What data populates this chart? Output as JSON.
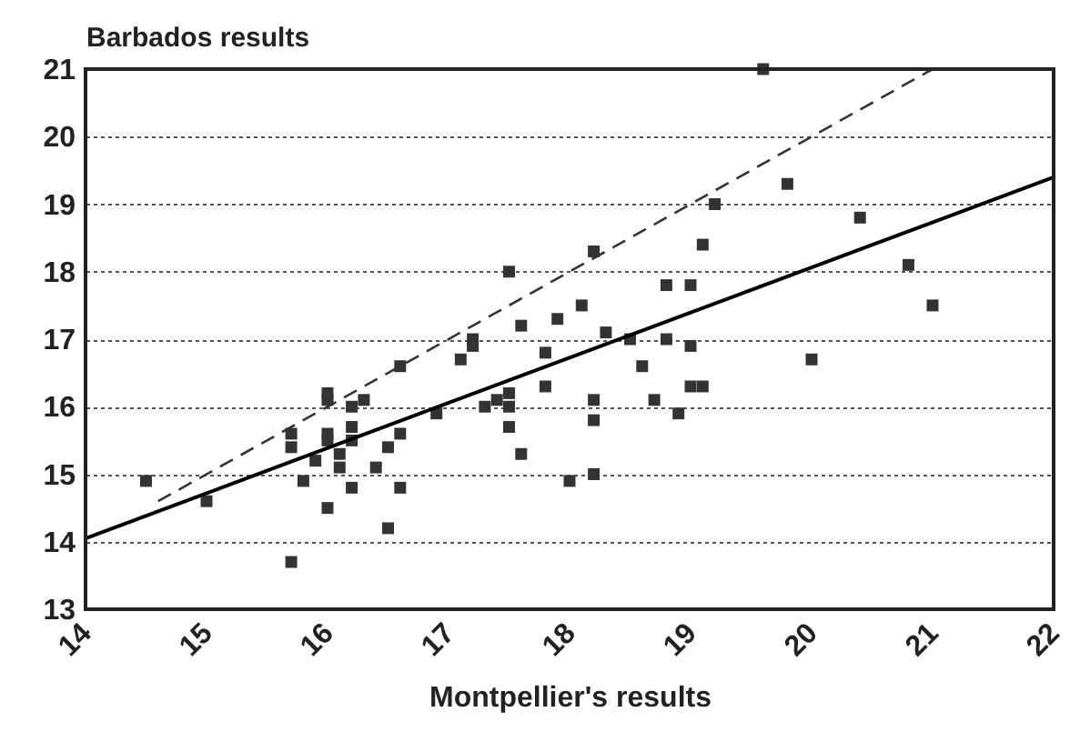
{
  "chart_data": {
    "type": "scatter",
    "xlabel": "Montpellier's results",
    "ylabel": "Barbados results",
    "xlim": [
      14,
      22
    ],
    "ylim": [
      13,
      21
    ],
    "xticks": [
      14,
      15,
      16,
      17,
      18,
      19,
      20,
      21,
      22
    ],
    "yticks": [
      13,
      14,
      15,
      16,
      17,
      18,
      19,
      20,
      21
    ],
    "grid": "y",
    "series": [
      {
        "marker": "square",
        "color": "#333333",
        "x": [
          14.5,
          15.0,
          15.7,
          15.7,
          15.7,
          15.8,
          15.9,
          16.0,
          16.0,
          16.0,
          16.0,
          16.0,
          16.1,
          16.1,
          16.2,
          16.2,
          16.2,
          16.3,
          16.2,
          16.4,
          16.5,
          16.5,
          16.6,
          16.6,
          16.6,
          16.9,
          17.1,
          17.2,
          17.2,
          17.3,
          17.4,
          17.5,
          17.5,
          17.5,
          17.5,
          17.6,
          17.6,
          17.8,
          17.8,
          17.9,
          18.0,
          18.1,
          18.2,
          18.2,
          18.2,
          18.2,
          18.3,
          18.5,
          18.6,
          18.7,
          18.8,
          18.8,
          18.9,
          19.0,
          19.0,
          19.0,
          19.1,
          19.1,
          19.2,
          19.6,
          19.8,
          20.0,
          20.4,
          20.8,
          21.0
        ],
        "values": [
          14.9,
          14.6,
          13.7,
          15.6,
          15.4,
          14.9,
          15.2,
          16.2,
          16.1,
          15.6,
          15.5,
          14.5,
          15.3,
          15.1,
          15.7,
          16.0,
          15.5,
          16.1,
          14.8,
          15.1,
          14.2,
          15.4,
          14.8,
          15.6,
          16.6,
          15.9,
          16.7,
          17.0,
          16.9,
          16.0,
          16.1,
          16.2,
          16.0,
          15.7,
          18.0,
          17.2,
          15.3,
          16.8,
          16.3,
          17.3,
          14.9,
          17.5,
          18.3,
          16.1,
          15.8,
          15.0,
          17.1,
          17.0,
          16.6,
          16.1,
          17.8,
          17.0,
          15.9,
          17.8,
          16.9,
          16.3,
          16.3,
          18.4,
          19.0,
          21.0,
          19.3,
          16.7,
          18.8,
          18.1,
          17.5
        ]
      },
      {
        "type": "line",
        "line_style": "dashed",
        "color": "#333333",
        "x": [
          14.6,
          21.0
        ],
        "values": [
          14.6,
          21.0
        ]
      },
      {
        "type": "line",
        "line_style": "solid",
        "color": "#000000",
        "x": [
          14,
          22
        ],
        "values": [
          14.05,
          19.4
        ]
      }
    ]
  }
}
